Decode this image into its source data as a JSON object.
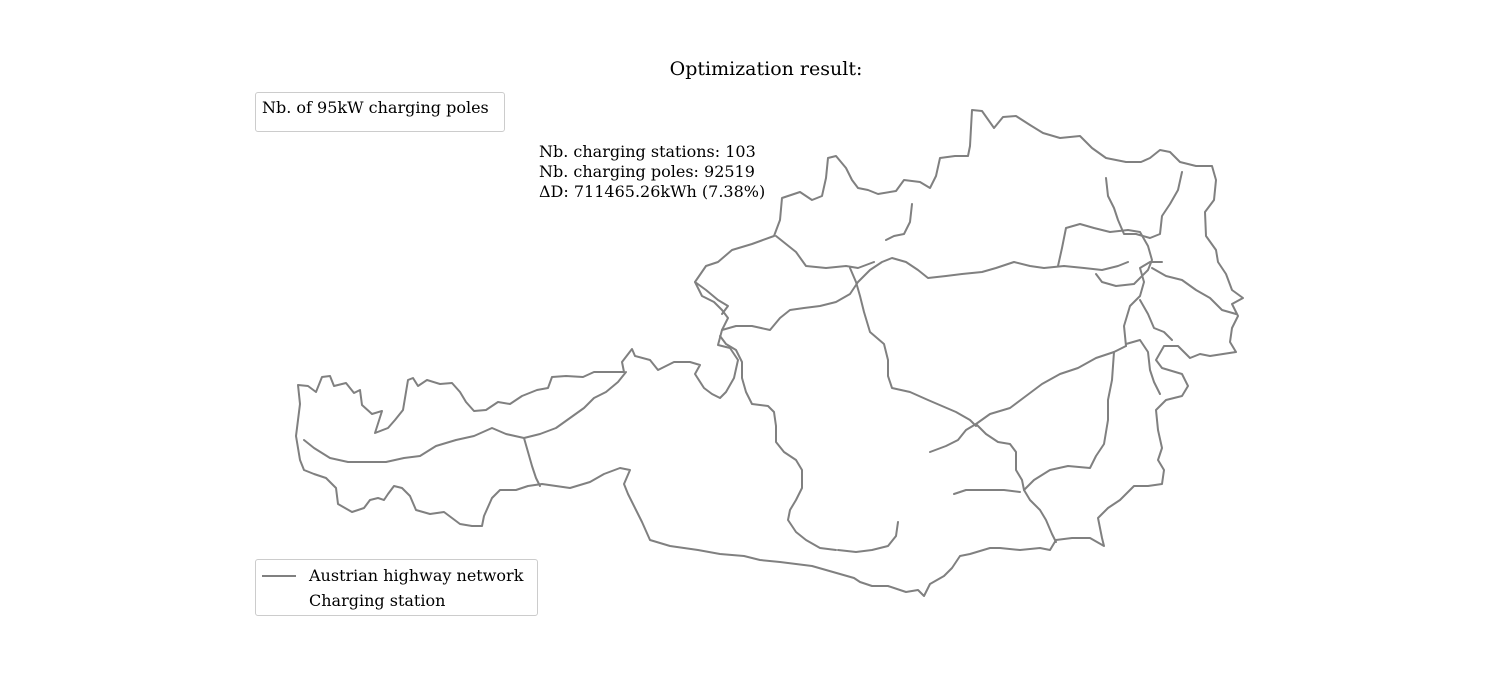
{
  "title": "Optimization result:",
  "legend_poles": {
    "title": "Nb. of 95kW charging poles"
  },
  "stats": {
    "stations": "Nb. charging stations: 103",
    "poles": "Nb. charging poles: 92519",
    "delta": "ΔD: 711465.26kWh (7.38%)"
  },
  "legend_network": {
    "items": [
      {
        "label": "Austrian highway network",
        "marker": "line",
        "color": "#808080"
      },
      {
        "label": "Charging station",
        "marker": "none"
      }
    ]
  },
  "colors": {
    "network_line": "#808080",
    "legend_border": "#cccccc",
    "background": "#ffffff"
  }
}
